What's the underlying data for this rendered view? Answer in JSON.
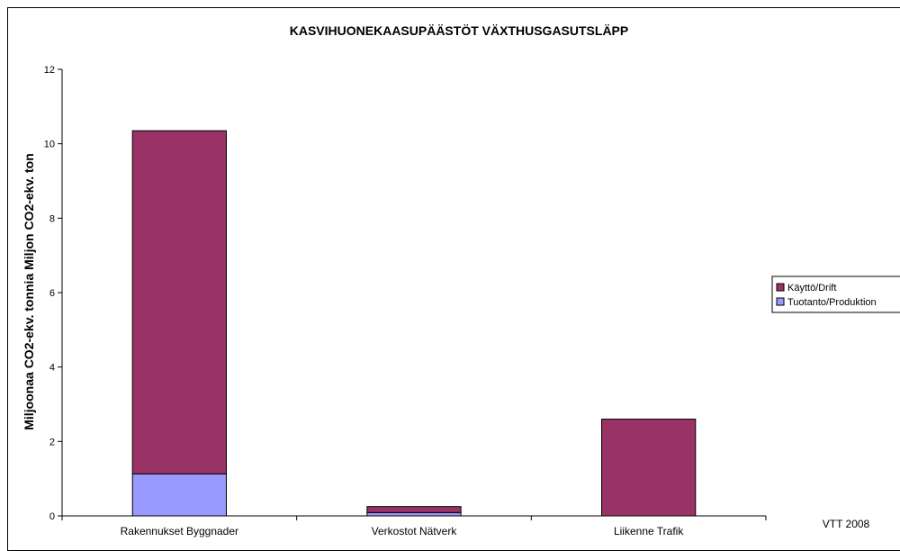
{
  "chart_data": {
    "type": "bar",
    "stacked": true,
    "title": "KASVIHUONEKAASUPÄÄSTÖT VÄXTHUSGASUTSLÄPP",
    "ylabel": "Miljoonaa CO2-ekv. tonnia Miljon CO2-ekv. ton",
    "xlabel": "",
    "ylim": [
      0,
      12
    ],
    "yticks": [
      0,
      2,
      4,
      6,
      8,
      10,
      12
    ],
    "categories": [
      "Rakennukset Byggnader",
      "Verkostot Nätverk",
      "Liikenne Trafik"
    ],
    "series": [
      {
        "name": "Tuotanto/Produktion",
        "color": "#9999ff",
        "values": [
          1.13,
          0.09,
          0
        ]
      },
      {
        "name": "Käyttö/Drift",
        "color": "#993366",
        "values": [
          9.22,
          0.16,
          2.6
        ]
      }
    ],
    "legend_order": [
      "Käyttö/Drift",
      "Tuotanto/Produktion"
    ],
    "legend_position": "right",
    "grid": false,
    "annotation": "VTT 2008"
  }
}
